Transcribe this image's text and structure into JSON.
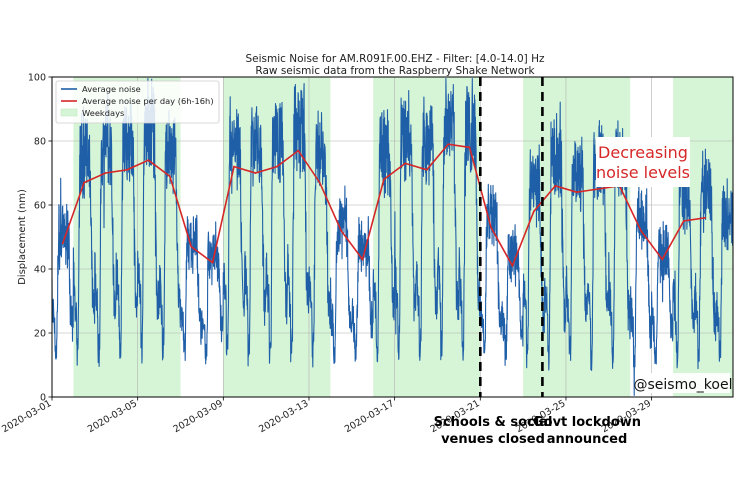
{
  "chart_data": {
    "type": "line",
    "title_line1": "Seismic Noise for AM.R091F.00.EHZ - Filter: [4.0-14.0] Hz",
    "title_line2": "Raw seismic  data from the Raspberry Shake Network",
    "xlabel": "",
    "ylabel": "Displacement (nm)",
    "ylim": [
      0,
      100
    ],
    "xlim": [
      0,
      31.8
    ],
    "x_origin_date": "2020-03-01",
    "y_ticks": [
      0,
      20,
      40,
      60,
      80,
      100
    ],
    "x_ticks": [
      {
        "day": 0,
        "label": "2020-03-01"
      },
      {
        "day": 4,
        "label": "2020-03-05"
      },
      {
        "day": 8,
        "label": "2020-03-09"
      },
      {
        "day": 12,
        "label": "2020-03-13"
      },
      {
        "day": 16,
        "label": "2020-03-17"
      },
      {
        "day": 20,
        "label": "2020-03-21"
      },
      {
        "day": 24,
        "label": "2020-03-25"
      },
      {
        "day": 28,
        "label": "2020-03-29"
      }
    ],
    "legend": {
      "placement": "top-left",
      "entries": [
        {
          "label": "Average noise",
          "kind": "line",
          "color": "#1f5fa8"
        },
        {
          "label": "Average noise per day (6h-16h)",
          "kind": "line",
          "color": "#d62728"
        },
        {
          "label": "Weekdays",
          "kind": "patch",
          "color": "#d6f5d6"
        }
      ]
    },
    "weekday_spans": [
      [
        1.0,
        6.0
      ],
      [
        8.0,
        13.0
      ],
      [
        15.0,
        20.0
      ],
      [
        22.0,
        27.0
      ],
      [
        29.0,
        31.8
      ]
    ],
    "series": [
      {
        "name": "Average noise per day (6h-16h)",
        "color": "#d62728",
        "x": [
          0.5,
          1.5,
          2.5,
          3.5,
          4.5,
          5.5,
          6.5,
          7.5,
          8.5,
          9.5,
          10.5,
          11.5,
          12.5,
          13.5,
          14.5,
          15.5,
          16.5,
          17.5,
          18.5,
          19.5,
          20.5,
          21.5,
          22.5,
          23.5,
          24.5,
          25.5,
          26.5,
          27.5,
          28.5,
          29.5,
          30.5
        ],
        "values": [
          48,
          67,
          70,
          71,
          74,
          69,
          47,
          42,
          72,
          70,
          72,
          77,
          67,
          52,
          43,
          68,
          73,
          71,
          79,
          78,
          53,
          41,
          58,
          66,
          64,
          65,
          66,
          52,
          43,
          55,
          56
        ]
      },
      {
        "name": "Average noise",
        "color": "#1f5fa8",
        "daily_day_peak": [
          52,
          78,
          80,
          82,
          86,
          78,
          50,
          46,
          82,
          82,
          84,
          87,
          78,
          56,
          48,
          78,
          84,
          82,
          88,
          86,
          58,
          46,
          68,
          76,
          74,
          75,
          76,
          58,
          48,
          65,
          66,
          58
        ],
        "daily_night_trough": [
          12,
          12,
          11,
          12,
          12,
          11,
          14,
          12,
          12,
          12,
          12,
          12,
          11,
          12,
          14,
          12,
          12,
          12,
          12,
          12,
          13,
          13,
          12,
          10,
          11,
          10,
          9,
          10,
          12,
          10,
          11,
          12
        ]
      }
    ],
    "event_lines": [
      {
        "day": 20.0,
        "label_lines": [
          "Schools & social",
          "venues closed"
        ]
      },
      {
        "day": 22.9,
        "label_lines": [
          "Govt lockdown",
          "announced"
        ]
      }
    ],
    "annotations": [
      {
        "text_lines": [
          "Decreasing",
          "noise levels"
        ],
        "color": "#d62728"
      },
      {
        "text": "@seismo_koel"
      }
    ]
  }
}
